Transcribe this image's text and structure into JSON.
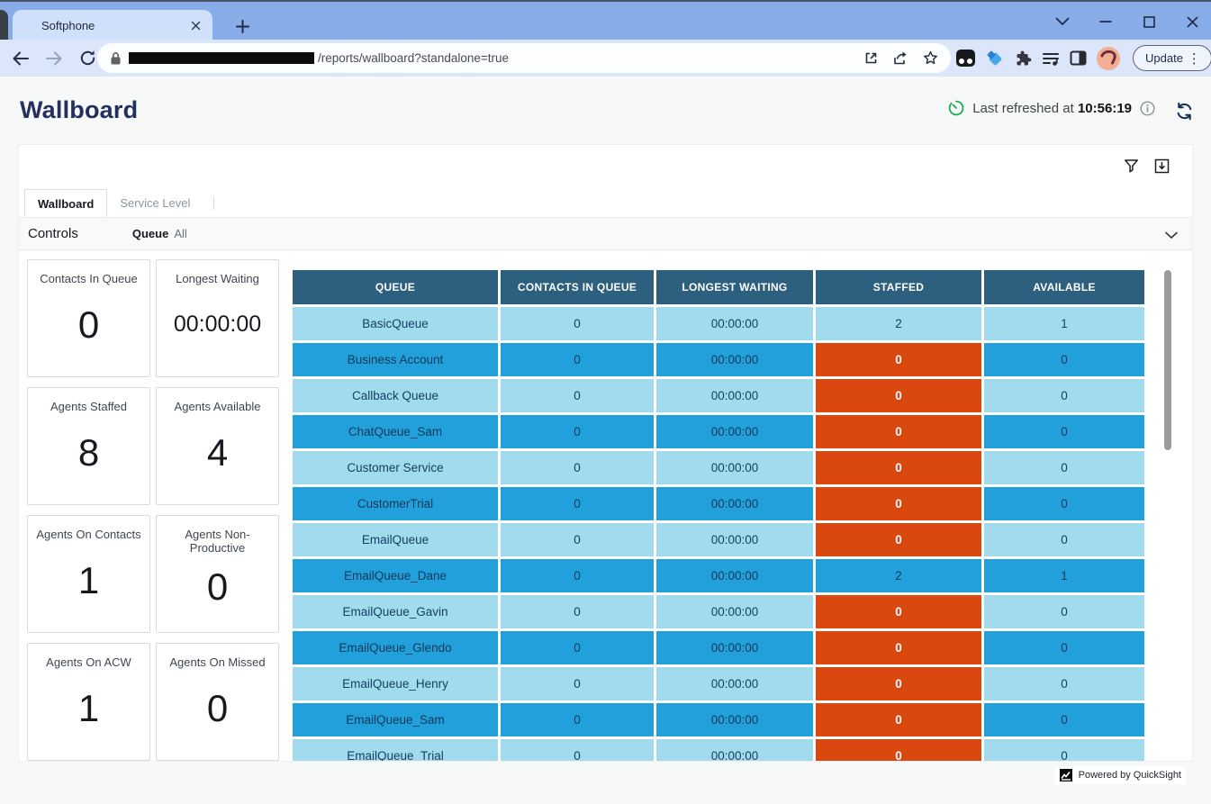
{
  "browser": {
    "tab_title": "Softphone",
    "url_path": "/reports/wallboard?standalone=true",
    "update_label": "Update"
  },
  "page": {
    "title": "Wallboard",
    "refresh": {
      "label": "Last refreshed at",
      "time": "10:56:19"
    }
  },
  "sheet_tabs": {
    "wallboard": "Wallboard",
    "service_level": "Service Level"
  },
  "controls": {
    "title": "Controls",
    "filter_label": "Queue",
    "filter_value": "All"
  },
  "kpis": [
    {
      "label": "Contacts In Queue",
      "value": "0"
    },
    {
      "label": "Longest Waiting",
      "value": "00:00:00"
    },
    {
      "label": "Agents Staffed",
      "value": "8"
    },
    {
      "label": "Agents Available",
      "value": "4"
    },
    {
      "label": "Agents On Contacts",
      "value": "1"
    },
    {
      "label": "Agents Non-Productive",
      "value": "0"
    },
    {
      "label": "Agents On ACW",
      "value": "1"
    },
    {
      "label": "Agents On Missed",
      "value": "0"
    }
  ],
  "table": {
    "columns": [
      "QUEUE",
      "CONTACTS IN QUEUE",
      "LONGEST WAITING",
      "STAFFED",
      "AVAILABLE"
    ],
    "rows": [
      {
        "queue": "BasicQueue",
        "contacts_in_queue": "0",
        "longest_waiting": "00:00:00",
        "staffed": "2",
        "available": "1"
      },
      {
        "queue": "Business Account",
        "contacts_in_queue": "0",
        "longest_waiting": "00:00:00",
        "staffed": "0",
        "available": "0"
      },
      {
        "queue": "Callback Queue",
        "contacts_in_queue": "0",
        "longest_waiting": "00:00:00",
        "staffed": "0",
        "available": "0"
      },
      {
        "queue": "ChatQueue_Sam",
        "contacts_in_queue": "0",
        "longest_waiting": "00:00:00",
        "staffed": "0",
        "available": "0"
      },
      {
        "queue": "Customer Service",
        "contacts_in_queue": "0",
        "longest_waiting": "00:00:00",
        "staffed": "0",
        "available": "0"
      },
      {
        "queue": "CustomerTrial",
        "contacts_in_queue": "0",
        "longest_waiting": "00:00:00",
        "staffed": "0",
        "available": "0"
      },
      {
        "queue": "EmailQueue",
        "contacts_in_queue": "0",
        "longest_waiting": "00:00:00",
        "staffed": "0",
        "available": "0"
      },
      {
        "queue": "EmailQueue_Dane",
        "contacts_in_queue": "0",
        "longest_waiting": "00:00:00",
        "staffed": "2",
        "available": "1"
      },
      {
        "queue": "EmailQueue_Gavin",
        "contacts_in_queue": "0",
        "longest_waiting": "00:00:00",
        "staffed": "0",
        "available": "0"
      },
      {
        "queue": "EmailQueue_Glendo",
        "contacts_in_queue": "0",
        "longest_waiting": "00:00:00",
        "staffed": "0",
        "available": "0"
      },
      {
        "queue": "EmailQueue_Henry",
        "contacts_in_queue": "0",
        "longest_waiting": "00:00:00",
        "staffed": "0",
        "available": "0"
      },
      {
        "queue": "EmailQueue_Sam",
        "contacts_in_queue": "0",
        "longest_waiting": "00:00:00",
        "staffed": "0",
        "available": "0"
      },
      {
        "queue": "EmailQueue_Trial",
        "contacts_in_queue": "0",
        "longest_waiting": "00:00:00",
        "staffed": "0",
        "available": "0"
      }
    ]
  },
  "footer": {
    "attribution": "Powered by QuickSight"
  },
  "colors": {
    "frame_blue": "#87ace8",
    "toolbar_blue": "#dbe6fb",
    "title_navy": "#232f5f",
    "table_header": "#2d5f7f",
    "row_light": "#a2dbee",
    "row_dark": "#22a0db",
    "alert_orange": "#d9480f",
    "refresh_green": "#1faa53"
  }
}
